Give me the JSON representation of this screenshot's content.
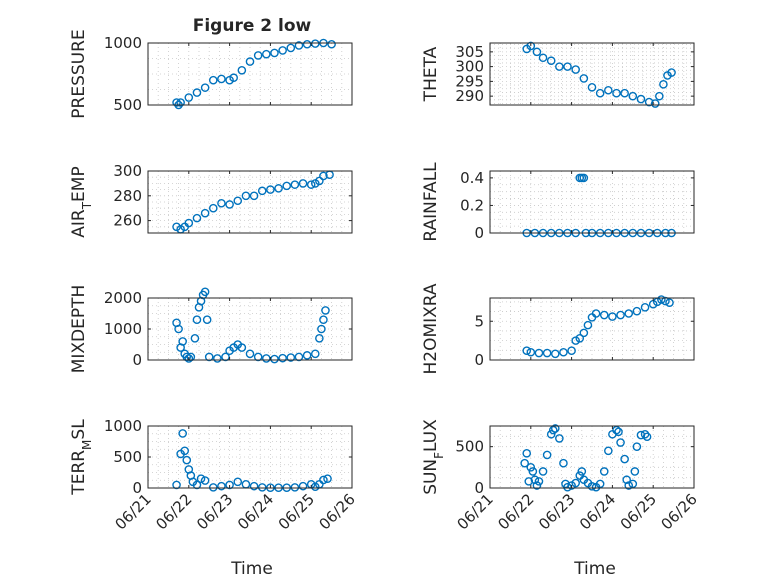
{
  "figure": {
    "title": "Figure 2 low",
    "xlabel": "Time",
    "date_ticks": [
      "06/21",
      "06/22",
      "06/23",
      "06/24",
      "06/25",
      "06/26"
    ],
    "colors": {
      "marker": "#0072BD",
      "axis": "#262626",
      "grid": "#c8c8c8",
      "background": "#ffffff"
    }
  },
  "chart_data": [
    {
      "type": "scatter",
      "ylabel": "PRESSURE",
      "ylabel_sub": "",
      "xlim": [
        "06/21",
        "06/26"
      ],
      "ylim": [
        500,
        1000
      ],
      "yticks": [
        500,
        1000
      ],
      "grid": true,
      "marker": "open-circle",
      "points": [
        [
          21.7,
          520
        ],
        [
          21.75,
          500
        ],
        [
          21.8,
          520
        ],
        [
          22.0,
          560
        ],
        [
          22.2,
          600
        ],
        [
          22.4,
          640
        ],
        [
          22.6,
          700
        ],
        [
          22.8,
          710
        ],
        [
          23.0,
          700
        ],
        [
          23.1,
          720
        ],
        [
          23.3,
          780
        ],
        [
          23.5,
          850
        ],
        [
          23.7,
          900
        ],
        [
          23.9,
          910
        ],
        [
          24.1,
          920
        ],
        [
          24.3,
          940
        ],
        [
          24.5,
          960
        ],
        [
          24.7,
          980
        ],
        [
          24.9,
          990
        ],
        [
          25.1,
          995
        ],
        [
          25.3,
          1000
        ],
        [
          25.5,
          990
        ]
      ]
    },
    {
      "type": "scatter",
      "ylabel": "THETA",
      "ylabel_sub": "",
      "xlim": [
        "06/21",
        "06/26"
      ],
      "ylim": [
        287,
        308
      ],
      "yticks": [
        290,
        295,
        300,
        305
      ],
      "grid": true,
      "marker": "open-circle",
      "points": [
        [
          21.9,
          306
        ],
        [
          22.0,
          307
        ],
        [
          22.15,
          305
        ],
        [
          22.3,
          303
        ],
        [
          22.5,
          302
        ],
        [
          22.7,
          300
        ],
        [
          22.9,
          300
        ],
        [
          23.1,
          299
        ],
        [
          23.3,
          296
        ],
        [
          23.5,
          293
        ],
        [
          23.7,
          291
        ],
        [
          23.9,
          292
        ],
        [
          24.1,
          291
        ],
        [
          24.3,
          291
        ],
        [
          24.5,
          290
        ],
        [
          24.7,
          289
        ],
        [
          24.9,
          288
        ],
        [
          25.05,
          287.5
        ],
        [
          25.15,
          290
        ],
        [
          25.25,
          294
        ],
        [
          25.35,
          297
        ],
        [
          25.45,
          298
        ]
      ]
    },
    {
      "type": "scatter",
      "ylabel": "AIR",
      "ylabel_sub": "T",
      "ylabel_rest": "EMP",
      "xlim": [
        "06/21",
        "06/26"
      ],
      "ylim": [
        250,
        300
      ],
      "yticks": [
        260,
        280,
        300
      ],
      "grid": true,
      "marker": "open-circle",
      "points": [
        [
          21.7,
          255
        ],
        [
          21.8,
          253
        ],
        [
          21.9,
          255
        ],
        [
          22.0,
          258
        ],
        [
          22.2,
          262
        ],
        [
          22.4,
          266
        ],
        [
          22.6,
          270
        ],
        [
          22.8,
          274
        ],
        [
          23.0,
          273
        ],
        [
          23.2,
          276
        ],
        [
          23.4,
          280
        ],
        [
          23.6,
          280
        ],
        [
          23.8,
          284
        ],
        [
          24.0,
          285
        ],
        [
          24.2,
          286
        ],
        [
          24.4,
          288
        ],
        [
          24.6,
          289
        ],
        [
          24.8,
          290
        ],
        [
          25.0,
          289
        ],
        [
          25.1,
          290
        ],
        [
          25.2,
          292
        ],
        [
          25.3,
          296
        ],
        [
          25.45,
          297
        ]
      ]
    },
    {
      "type": "scatter",
      "ylabel": "RAINFALL",
      "ylabel_sub": "",
      "xlim": [
        "06/21",
        "06/26"
      ],
      "ylim": [
        0,
        0.45
      ],
      "yticks": [
        0,
        0.2,
        0.4
      ],
      "grid": true,
      "marker": "open-circle",
      "points": [
        [
          21.9,
          0
        ],
        [
          22.1,
          0
        ],
        [
          22.3,
          0
        ],
        [
          22.5,
          0
        ],
        [
          22.7,
          0
        ],
        [
          22.9,
          0
        ],
        [
          23.1,
          0
        ],
        [
          23.2,
          0.4
        ],
        [
          23.25,
          0.4
        ],
        [
          23.3,
          0.4
        ],
        [
          23.35,
          0
        ],
        [
          23.5,
          0
        ],
        [
          23.7,
          0
        ],
        [
          23.9,
          0
        ],
        [
          24.1,
          0
        ],
        [
          24.3,
          0
        ],
        [
          24.5,
          0
        ],
        [
          24.7,
          0
        ],
        [
          24.9,
          0
        ],
        [
          25.1,
          0
        ],
        [
          25.3,
          0
        ],
        [
          25.45,
          0
        ]
      ]
    },
    {
      "type": "scatter",
      "ylabel": "MIXDEPTH",
      "ylabel_sub": "",
      "xlim": [
        "06/21",
        "06/26"
      ],
      "ylim": [
        0,
        2000
      ],
      "yticks": [
        0,
        1000,
        2000
      ],
      "grid": true,
      "marker": "open-circle",
      "points": [
        [
          21.7,
          1200
        ],
        [
          21.75,
          1000
        ],
        [
          21.8,
          400
        ],
        [
          21.85,
          600
        ],
        [
          21.9,
          200
        ],
        [
          21.95,
          100
        ],
        [
          22.0,
          50
        ],
        [
          22.05,
          100
        ],
        [
          22.15,
          700
        ],
        [
          22.2,
          1300
        ],
        [
          22.25,
          1700
        ],
        [
          22.3,
          1900
        ],
        [
          22.35,
          2100
        ],
        [
          22.4,
          2200
        ],
        [
          22.45,
          1300
        ],
        [
          22.5,
          100
        ],
        [
          22.7,
          50
        ],
        [
          22.9,
          100
        ],
        [
          23.0,
          300
        ],
        [
          23.1,
          400
        ],
        [
          23.2,
          500
        ],
        [
          23.3,
          400
        ],
        [
          23.5,
          200
        ],
        [
          23.7,
          100
        ],
        [
          23.9,
          50
        ],
        [
          24.1,
          30
        ],
        [
          24.3,
          60
        ],
        [
          24.5,
          80
        ],
        [
          24.7,
          100
        ],
        [
          24.9,
          150
        ],
        [
          25.1,
          200
        ],
        [
          25.2,
          700
        ],
        [
          25.25,
          1000
        ],
        [
          25.3,
          1300
        ],
        [
          25.35,
          1600
        ]
      ]
    },
    {
      "type": "scatter",
      "ylabel": "H2OMIXRA",
      "ylabel_sub": "",
      "xlim": [
        "06/21",
        "06/26"
      ],
      "ylim": [
        0,
        8
      ],
      "yticks": [
        0,
        5
      ],
      "grid": true,
      "marker": "open-circle",
      "points": [
        [
          21.9,
          1.2
        ],
        [
          22.0,
          1.0
        ],
        [
          22.2,
          0.9
        ],
        [
          22.4,
          0.9
        ],
        [
          22.6,
          0.8
        ],
        [
          22.8,
          1.0
        ],
        [
          23.0,
          1.2
        ],
        [
          23.1,
          2.5
        ],
        [
          23.2,
          2.8
        ],
        [
          23.3,
          3.5
        ],
        [
          23.4,
          4.5
        ],
        [
          23.5,
          5.5
        ],
        [
          23.6,
          6.0
        ],
        [
          23.8,
          5.8
        ],
        [
          24.0,
          5.6
        ],
        [
          24.2,
          5.8
        ],
        [
          24.4,
          6.0
        ],
        [
          24.6,
          6.3
        ],
        [
          24.8,
          6.8
        ],
        [
          25.0,
          7.2
        ],
        [
          25.1,
          7.5
        ],
        [
          25.2,
          7.8
        ],
        [
          25.3,
          7.6
        ],
        [
          25.4,
          7.4
        ]
      ]
    },
    {
      "type": "scatter",
      "ylabel": "TERR",
      "ylabel_sub": "M",
      "ylabel_rest": "SL",
      "xlim": [
        "06/21",
        "06/26"
      ],
      "ylim": [
        0,
        1000
      ],
      "yticks": [
        0,
        500,
        1000
      ],
      "grid": true,
      "marker": "open-circle",
      "points": [
        [
          21.7,
          50
        ],
        [
          21.8,
          550
        ],
        [
          21.85,
          880
        ],
        [
          21.9,
          600
        ],
        [
          21.95,
          450
        ],
        [
          22.0,
          300
        ],
        [
          22.05,
          200
        ],
        [
          22.1,
          100
        ],
        [
          22.2,
          50
        ],
        [
          22.3,
          150
        ],
        [
          22.4,
          120
        ],
        [
          22.6,
          10
        ],
        [
          22.8,
          30
        ],
        [
          23.0,
          50
        ],
        [
          23.2,
          100
        ],
        [
          23.4,
          60
        ],
        [
          23.6,
          30
        ],
        [
          23.8,
          10
        ],
        [
          24.0,
          5
        ],
        [
          24.2,
          5
        ],
        [
          24.4,
          5
        ],
        [
          24.6,
          10
        ],
        [
          24.8,
          30
        ],
        [
          25.0,
          60
        ],
        [
          25.1,
          20
        ],
        [
          25.2,
          60
        ],
        [
          25.3,
          130
        ],
        [
          25.4,
          150
        ]
      ]
    },
    {
      "type": "scatter",
      "ylabel": "SUN",
      "ylabel_sub": "F",
      "ylabel_rest": "LUX",
      "xlim": [
        "06/21",
        "06/26"
      ],
      "ylim": [
        0,
        750
      ],
      "yticks": [
        0,
        500
      ],
      "grid": true,
      "marker": "open-circle",
      "points": [
        [
          21.85,
          300
        ],
        [
          21.9,
          420
        ],
        [
          21.95,
          80
        ],
        [
          22.0,
          250
        ],
        [
          22.05,
          200
        ],
        [
          22.1,
          100
        ],
        [
          22.15,
          30
        ],
        [
          22.2,
          80
        ],
        [
          22.3,
          200
        ],
        [
          22.4,
          400
        ],
        [
          22.5,
          650
        ],
        [
          22.55,
          700
        ],
        [
          22.6,
          720
        ],
        [
          22.7,
          600
        ],
        [
          22.8,
          300
        ],
        [
          22.85,
          50
        ],
        [
          22.9,
          10
        ],
        [
          23.0,
          30
        ],
        [
          23.1,
          60
        ],
        [
          23.2,
          150
        ],
        [
          23.25,
          200
        ],
        [
          23.3,
          100
        ],
        [
          23.4,
          60
        ],
        [
          23.5,
          20
        ],
        [
          23.6,
          10
        ],
        [
          23.7,
          50
        ],
        [
          23.8,
          200
        ],
        [
          23.9,
          450
        ],
        [
          24.0,
          650
        ],
        [
          24.1,
          700
        ],
        [
          24.15,
          680
        ],
        [
          24.2,
          550
        ],
        [
          24.3,
          350
        ],
        [
          24.35,
          100
        ],
        [
          24.4,
          30
        ],
        [
          24.5,
          50
        ],
        [
          24.55,
          200
        ],
        [
          24.6,
          500
        ],
        [
          24.7,
          640
        ],
        [
          24.8,
          650
        ],
        [
          24.85,
          620
        ]
      ]
    }
  ]
}
